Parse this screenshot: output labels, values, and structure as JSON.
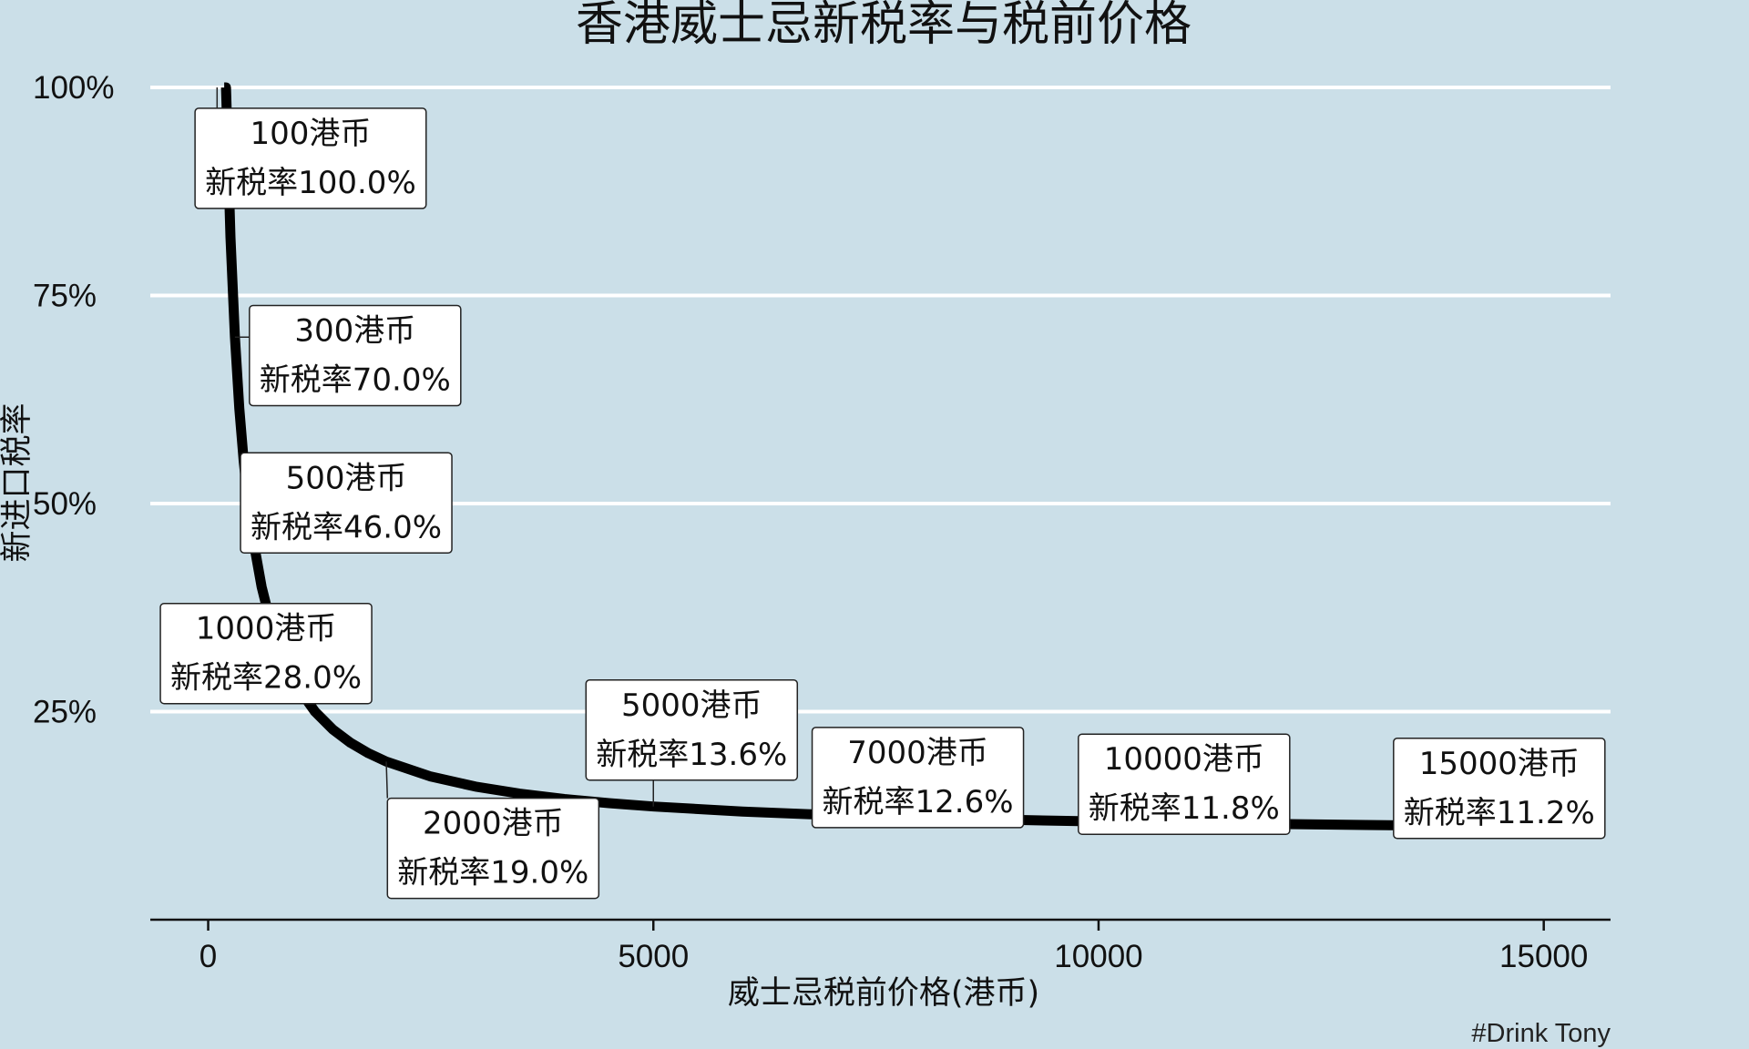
{
  "chart_data": {
    "type": "line",
    "title": "香港威士忌新税率与税前价格",
    "xlabel": "威士忌税前价格(港币)",
    "ylabel": "新进口税率",
    "caption": "#Drink Tony",
    "xlim": [
      -650,
      15750
    ],
    "ylim": [
      0.0,
      1.0
    ],
    "xticks": [
      0,
      5000,
      10000,
      15000
    ],
    "xtick_labels": [
      "0",
      "5000",
      "10000",
      "15000"
    ],
    "yticks": [
      0.25,
      0.5,
      0.75,
      1.0
    ],
    "ytick_labels": [
      "25%",
      "50%",
      "75%",
      "100%"
    ],
    "grid": "horizontal",
    "background": "#cbdfe8",
    "line_color": "#000000",
    "series": [
      {
        "x": [
          180,
          200,
          250,
          300,
          350,
          400,
          450,
          500,
          600,
          700,
          800,
          900,
          1000,
          1200,
          1400,
          1600,
          1800,
          2000,
          2500,
          3000,
          3500,
          4000,
          4500,
          5000,
          6000,
          7000,
          8000,
          9000,
          10000,
          11000,
          12000,
          13000,
          14000,
          15000
        ],
        "y": [
          1.0,
          1.0,
          0.82,
          0.7,
          0.6143,
          0.55,
          0.5,
          0.46,
          0.4,
          0.3571,
          0.325,
          0.3,
          0.28,
          0.25,
          0.2286,
          0.2125,
          0.2,
          0.19,
          0.172,
          0.16,
          0.1514,
          0.145,
          0.14,
          0.136,
          0.13,
          0.1257,
          0.1225,
          0.12,
          0.118,
          0.1164,
          0.115,
          0.1138,
          0.1129,
          0.112
        ]
      }
    ],
    "annotations": [
      {
        "x": 100,
        "y": 1.0,
        "label_x": 1150,
        "label_y": 0.917,
        "line1": "100港币",
        "line2": "新税率100.0%"
      },
      {
        "x": 300,
        "y": 0.7,
        "label_x": 1650,
        "label_y": 0.68,
        "line1": "300港币",
        "line2": "新税率70.0%"
      },
      {
        "x": 500,
        "y": 0.46,
        "label_x": 1550,
        "label_y": 0.503,
        "line1": "500港币",
        "line2": "新税率46.0%"
      },
      {
        "x": 1000,
        "y": 0.28,
        "label_x": 650,
        "label_y": 0.322,
        "line1": "1000港币",
        "line2": "新税率28.0%"
      },
      {
        "x": 2000,
        "y": 0.19,
        "label_x": 3200,
        "label_y": 0.088,
        "line1": "2000港币",
        "line2": "新税率19.0%"
      },
      {
        "x": 5000,
        "y": 0.136,
        "label_x": 5430,
        "label_y": 0.23,
        "line1": "5000港币",
        "line2": "新税率13.6%"
      },
      {
        "x": 7000,
        "y": 0.126,
        "label_x": 7970,
        "label_y": 0.173,
        "line1": "7000港币",
        "line2": "新税率12.6%"
      },
      {
        "x": 10000,
        "y": 0.118,
        "label_x": 10960,
        "label_y": 0.165,
        "line1": "10000港币",
        "line2": "新税率11.8%"
      },
      {
        "x": 15000,
        "y": 0.112,
        "label_x": 14500,
        "label_y": 0.16,
        "line1": "15000港币",
        "line2": "新税率11.2%"
      }
    ]
  }
}
